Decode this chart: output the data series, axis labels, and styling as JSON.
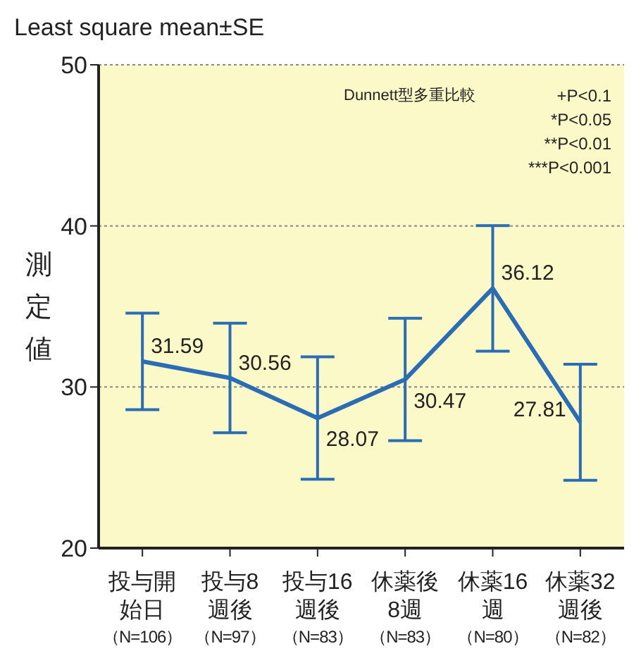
{
  "chart_data": {
    "type": "line",
    "title": "Least square mean±SE",
    "ylabel": "測定値",
    "categories": [
      "投与開始日（N=106）",
      "投与8週後（N=97）",
      "投与16週後（N=83）",
      "休薬後8週（N=83）",
      "休薬16週（N=80）",
      "休薬32週後（N=82）"
    ],
    "series": [
      {
        "color": "#2a6db5",
        "values": [
          31.59,
          30.56,
          28.07,
          30.47,
          36.12,
          27.81
        ],
        "errors": [
          3.0,
          3.4,
          3.8,
          3.8,
          3.9,
          3.6
        ]
      }
    ],
    "ylim": [
      20,
      50
    ],
    "yticks": [
      20,
      30,
      40,
      50
    ],
    "grid": "y",
    "data_labels": true,
    "marker": "none",
    "line_style": "solid",
    "legend": false,
    "annotations": [
      "Dunnett型多重比較",
      "+P<0.1",
      "*P<0.05",
      "**P<0.01",
      "***P<0.001"
    ]
  }
}
